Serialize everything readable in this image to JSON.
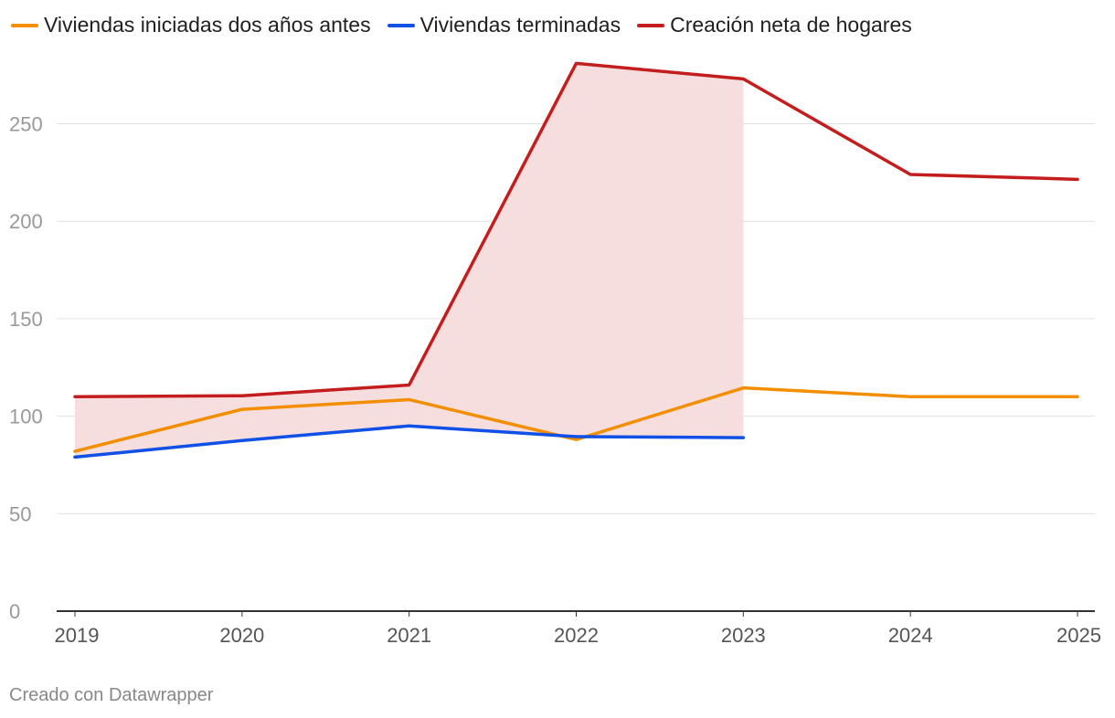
{
  "chart_data": {
    "type": "line",
    "x": [
      "2019",
      "2020",
      "2021",
      "2022",
      "2023",
      "2024",
      "2025"
    ],
    "ylim": [
      0,
      280
    ],
    "yticks": [
      0,
      50,
      100,
      150,
      200,
      250
    ],
    "grid": true,
    "legend_position": "top-left",
    "series": [
      {
        "name": "Viviendas iniciadas dos años antes",
        "color": "#f28e00",
        "values": [
          82,
          103.5,
          108.5,
          88,
          114.5,
          110,
          110
        ]
      },
      {
        "name": "Viviendas terminadas",
        "color": "#1150e6",
        "values": [
          79,
          87.5,
          95,
          89.5,
          89,
          null,
          null
        ]
      },
      {
        "name": "Creación neta de hogares",
        "color": "#c41d1d",
        "values": [
          110,
          110.5,
          116,
          281,
          273,
          224,
          221.5
        ]
      }
    ],
    "shaded_area": {
      "between": [
        "Creación neta de hogares",
        "Viviendas terminadas"
      ],
      "x_range": [
        "2019",
        "2023"
      ],
      "color": "#f6dede"
    }
  },
  "footer": {
    "credit": "Creado con Datawrapper"
  }
}
